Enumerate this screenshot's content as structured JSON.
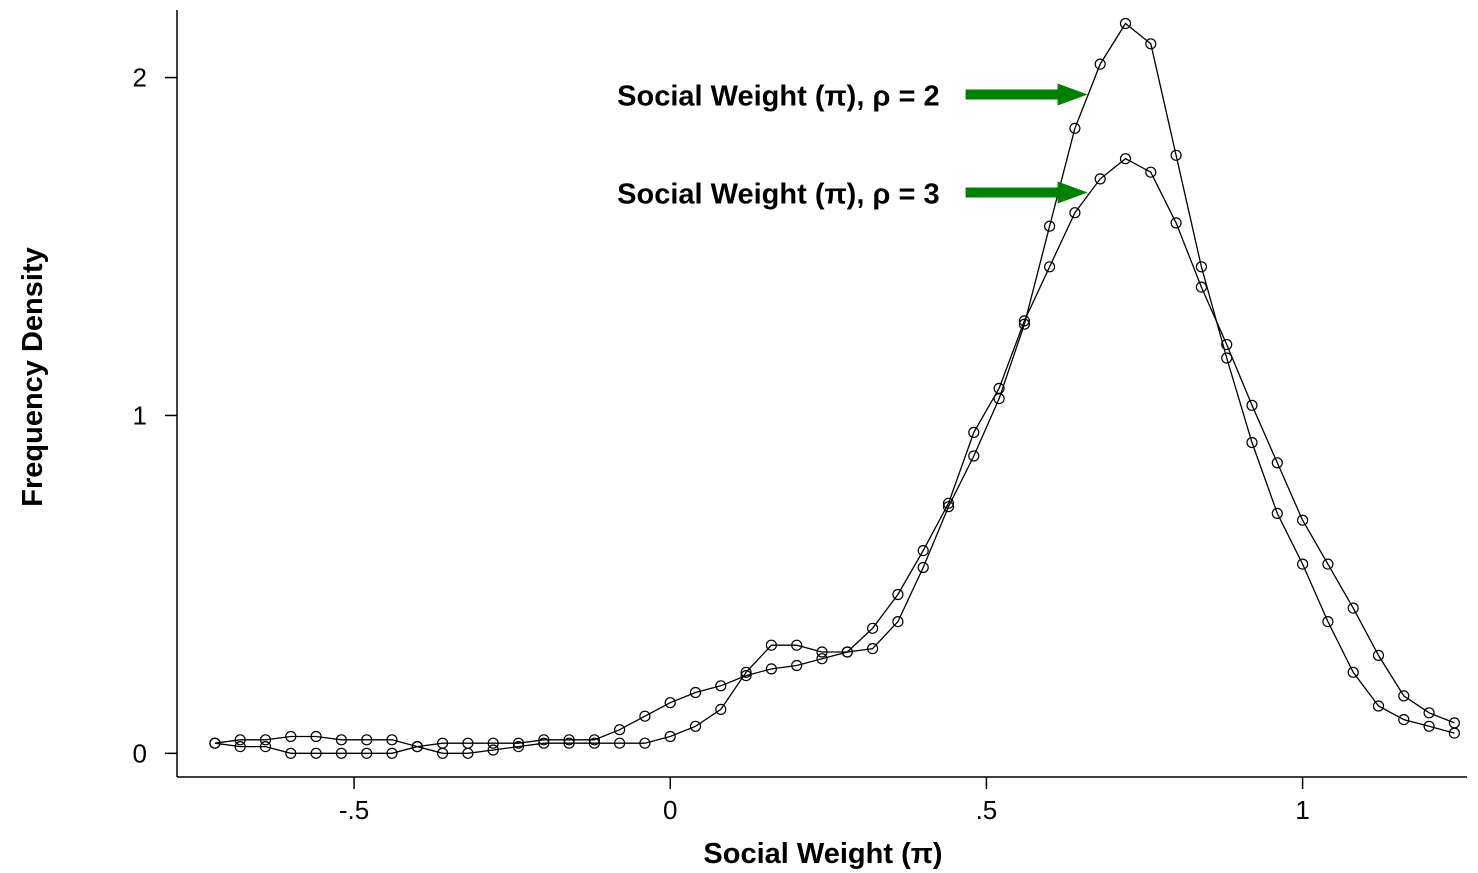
{
  "chart_data": {
    "type": "line",
    "title": "",
    "xlabel": "Social Weight (π)",
    "ylabel": "Frequency Density",
    "xlim": [
      -0.78,
      1.26
    ],
    "ylim": [
      -0.07,
      2.2
    ],
    "x_ticks": [
      {
        "value": -0.5,
        "label": "-.5"
      },
      {
        "value": 0,
        "label": "0"
      },
      {
        "value": 0.5,
        "label": ".5"
      },
      {
        "value": 1,
        "label": "1"
      }
    ],
    "y_ticks": [
      {
        "value": 0,
        "label": "0"
      },
      {
        "value": 1,
        "label": "1"
      },
      {
        "value": 2,
        "label": "2"
      }
    ],
    "grid": false,
    "line_color": "#000000",
    "annotation_color": "#008000",
    "annotations": [
      {
        "text": "Social Weight (π), ρ = 2",
        "x": 0.66,
        "y": 1.95
      },
      {
        "text": "Social Weight (π), ρ = 3",
        "x": 0.66,
        "y": 1.66
      }
    ],
    "series": [
      {
        "x": [
          -0.72,
          -0.68,
          -0.64,
          -0.6,
          -0.56,
          -0.52,
          -0.48,
          -0.44,
          -0.4,
          -0.36,
          -0.32,
          -0.28,
          -0.24,
          -0.2,
          -0.16,
          -0.12,
          -0.08,
          -0.04,
          0,
          0.04,
          0.08,
          0.12,
          0.16,
          0.2,
          0.24,
          0.28,
          0.32,
          0.36,
          0.4,
          0.44,
          0.48,
          0.52,
          0.56,
          0.6,
          0.64,
          0.68,
          0.72,
          0.76,
          0.8,
          0.84,
          0.88,
          0.92,
          0.96,
          1,
          1.04,
          1.08,
          1.12,
          1.16,
          1.2,
          1.24
        ],
        "values": [
          0.03,
          0.02,
          0.02,
          0.0,
          0.0,
          0.0,
          0.0,
          0.0,
          0.02,
          0.0,
          0.0,
          0.01,
          0.02,
          0.03,
          0.03,
          0.03,
          0.03,
          0.03,
          0.05,
          0.08,
          0.13,
          0.24,
          0.32,
          0.32,
          0.3,
          0.3,
          0.31,
          0.39,
          0.55,
          0.73,
          0.88,
          1.05,
          1.27,
          1.56,
          1.85,
          2.04,
          2.16,
          2.1,
          1.77,
          1.44,
          1.17,
          0.92,
          0.71,
          0.56,
          0.39,
          0.24,
          0.14,
          0.1,
          0.08,
          0.06
        ]
      },
      {
        "x": [
          -0.72,
          -0.68,
          -0.64,
          -0.6,
          -0.56,
          -0.52,
          -0.48,
          -0.44,
          -0.4,
          -0.36,
          -0.32,
          -0.28,
          -0.24,
          -0.2,
          -0.16,
          -0.12,
          -0.08,
          -0.04,
          0,
          0.04,
          0.08,
          0.12,
          0.16,
          0.2,
          0.24,
          0.28,
          0.32,
          0.36,
          0.4,
          0.44,
          0.48,
          0.52,
          0.56,
          0.6,
          0.64,
          0.68,
          0.72,
          0.76,
          0.8,
          0.84,
          0.88,
          0.92,
          0.96,
          1,
          1.04,
          1.08,
          1.12,
          1.16,
          1.2,
          1.24
        ],
        "values": [
          0.03,
          0.04,
          0.04,
          0.05,
          0.05,
          0.04,
          0.04,
          0.04,
          0.02,
          0.03,
          0.03,
          0.03,
          0.03,
          0.04,
          0.04,
          0.04,
          0.07,
          0.11,
          0.15,
          0.18,
          0.2,
          0.23,
          0.25,
          0.26,
          0.28,
          0.3,
          0.37,
          0.47,
          0.6,
          0.74,
          0.95,
          1.08,
          1.28,
          1.44,
          1.6,
          1.7,
          1.76,
          1.72,
          1.57,
          1.38,
          1.21,
          1.03,
          0.86,
          0.69,
          0.56,
          0.43,
          0.29,
          0.17,
          0.12,
          0.09
        ]
      }
    ]
  }
}
